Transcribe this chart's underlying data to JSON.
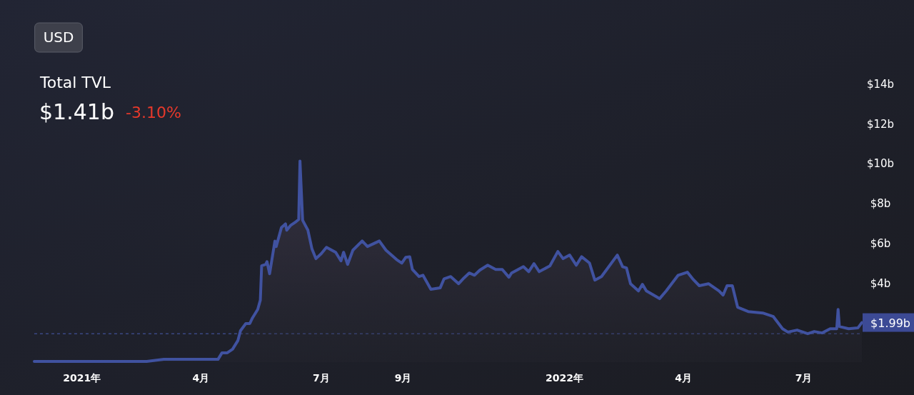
{
  "chart_data": {
    "type": "area",
    "title": "Total TVL",
    "subtitle": "$1.41b",
    "annotations": [
      "-3.10%",
      "USD",
      {
        "text": "$1.99b",
        "x": "2022-08-14",
        "y": 1.99
      }
    ],
    "x": [
      "2020-11-26",
      "2021-02-19",
      "2021-03-04",
      "2021-04-14",
      "2021-04-17",
      "2021-04-21",
      "2021-04-25",
      "2021-04-29",
      "2021-05-01",
      "2021-05-05",
      "2021-05-08",
      "2021-05-10",
      "2021-05-14",
      "2021-05-16",
      "2021-05-17",
      "2021-05-20",
      "2021-05-21",
      "2021-05-23",
      "2021-05-27",
      "2021-05-28",
      "2021-06-01",
      "2021-06-04",
      "2021-06-05",
      "2021-06-08",
      "2021-06-12",
      "2021-06-14",
      "2021-06-15",
      "2021-06-17",
      "2021-06-21",
      "2021-06-24",
      "2021-06-27",
      "2021-07-01",
      "2021-07-05",
      "2021-07-12",
      "2021-07-16",
      "2021-07-18",
      "2021-07-21",
      "2021-07-25",
      "2021-08-01",
      "2021-08-05",
      "2021-08-14",
      "2021-08-19",
      "2021-08-27",
      "2021-08-31",
      "2021-09-03",
      "2021-09-06",
      "2021-09-08",
      "2021-09-13",
      "2021-09-16",
      "2021-09-22",
      "2021-09-29",
      "2021-10-02",
      "2021-10-07",
      "2021-10-13",
      "2021-10-17",
      "2021-10-21",
      "2021-10-25",
      "2021-10-29",
      "2021-11-04",
      "2021-11-10",
      "2021-11-15",
      "2021-11-20",
      "2021-11-22",
      "2021-12-01",
      "2021-12-05",
      "2021-12-09",
      "2021-12-13",
      "2021-12-21",
      "2021-12-27",
      "2021-12-31",
      "2022-01-05",
      "2022-01-10",
      "2022-01-14",
      "2022-01-20",
      "2022-01-24",
      "2022-01-29",
      "2022-02-02",
      "2022-02-10",
      "2022-02-14",
      "2022-02-17",
      "2022-02-20",
      "2022-02-26",
      "2022-03-01",
      "2022-03-04",
      "2022-03-14",
      "2022-03-19",
      "2022-03-28",
      "2022-04-04",
      "2022-04-08",
      "2022-04-13",
      "2022-04-20",
      "2022-04-28",
      "2022-05-01",
      "2022-05-04",
      "2022-05-08",
      "2022-05-12",
      "2022-05-20",
      "2022-05-31",
      "2022-06-08",
      "2022-06-15",
      "2022-06-19",
      "2022-06-26",
      "2022-07-04",
      "2022-07-09",
      "2022-07-15",
      "2022-07-21",
      "2022-07-26",
      "2022-07-27",
      "2022-07-28",
      "2022-08-04",
      "2022-08-11",
      "2022-08-14"
    ],
    "series": [
      {
        "color": "#4052a0",
        "values": [
          0.04,
          0.04,
          0.14,
          0.14,
          0.47,
          0.47,
          0.65,
          1.08,
          1.58,
          1.94,
          1.94,
          2.22,
          2.65,
          3.12,
          4.84,
          4.91,
          5.05,
          4.44,
          6.09,
          5.81,
          6.77,
          6.95,
          6.63,
          6.88,
          7.06,
          7.17,
          10.11,
          7.13,
          6.63,
          5.7,
          5.2,
          5.45,
          5.77,
          5.52,
          5.09,
          5.52,
          4.91,
          5.63,
          6.09,
          5.81,
          6.09,
          5.63,
          5.16,
          4.98,
          5.27,
          5.3,
          4.66,
          4.3,
          4.37,
          3.66,
          3.73,
          4.19,
          4.3,
          3.94,
          4.23,
          4.48,
          4.37,
          4.62,
          4.87,
          4.66,
          4.66,
          4.27,
          4.48,
          4.8,
          4.55,
          4.95,
          4.55,
          4.84,
          5.56,
          5.2,
          5.38,
          4.87,
          5.3,
          4.98,
          4.12,
          4.3,
          4.66,
          5.38,
          4.8,
          4.73,
          3.94,
          3.58,
          3.91,
          3.58,
          3.19,
          3.58,
          4.37,
          4.52,
          4.19,
          3.84,
          3.94,
          3.58,
          3.37,
          3.84,
          3.84,
          2.76,
          2.54,
          2.47,
          2.29,
          1.68,
          1.51,
          1.61,
          1.43,
          1.54,
          1.47,
          1.68,
          1.68,
          2.65,
          1.79,
          1.68,
          1.72,
          1.99
        ]
      }
    ],
    "xlim": [
      "2020-11-26",
      "2022-08-14"
    ],
    "xticks": [
      {
        "value": "2021-01-01",
        "label": "2021年"
      },
      {
        "value": "2021-04-01",
        "label": "4月"
      },
      {
        "value": "2021-07-01",
        "label": "7月"
      },
      {
        "value": "2021-09-01",
        "label": "9月"
      },
      {
        "value": "2022-01-01",
        "label": "2022年"
      },
      {
        "value": "2022-04-01",
        "label": "4月"
      },
      {
        "value": "2022-07-01",
        "label": "7月"
      }
    ],
    "ylim": [
      0,
      14
    ],
    "yticks": [
      {
        "value": 4,
        "label": "$4b"
      },
      {
        "value": 6,
        "label": "$6b"
      },
      {
        "value": 8,
        "label": "$8b"
      },
      {
        "value": 10,
        "label": "$10b"
      },
      {
        "value": 12,
        "label": "$12b"
      },
      {
        "value": 14,
        "label": "$14b"
      }
    ],
    "ref_lines": [
      {
        "axis": "y",
        "value": 1.43,
        "color": "#4a5cb0",
        "line_style": "dashed"
      }
    ],
    "grid": false,
    "line_style": "solid"
  }
}
